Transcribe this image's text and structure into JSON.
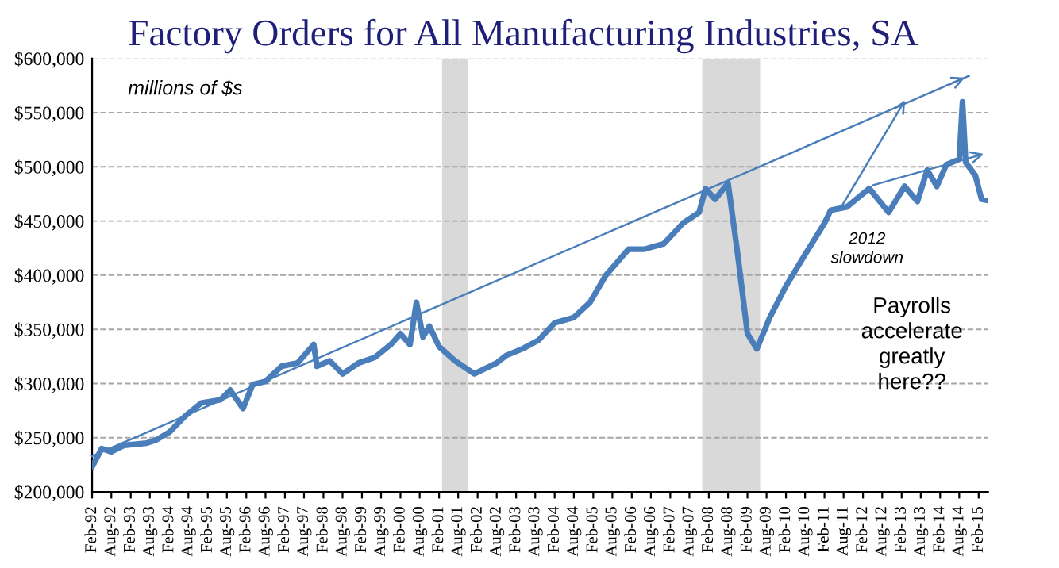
{
  "chart_data": {
    "type": "line",
    "title": "Factory Orders for All Manufacturing Industries, SA",
    "annotations": [
      "millions of $s",
      "2012 slowdown",
      "Payrolls accelerate greatly here??"
    ],
    "series": [
      {
        "color": "#4a7ebb",
        "x": [
          "1992-02",
          "1992-05",
          "1992-08",
          "1992-12",
          "1993-07",
          "1993-10",
          "1994-02",
          "1994-07",
          "1994-12",
          "1995-06",
          "1995-09",
          "1996-01",
          "1996-04",
          "1996-08",
          "1997-01",
          "1997-06",
          "1997-11",
          "1997-12",
          "1998-04",
          "1998-08",
          "1999-01",
          "1999-06",
          "1999-11",
          "2000-02",
          "2000-05",
          "2000-07",
          "2000-09",
          "2000-11",
          "2001-02",
          "2001-07",
          "2002-01",
          "2002-08",
          "2002-11",
          "2003-04",
          "2003-09",
          "2004-02",
          "2004-08",
          "2005-01",
          "2005-06",
          "2006-01",
          "2006-06",
          "2006-12",
          "2007-06",
          "2007-11",
          "2008-01",
          "2008-04",
          "2008-08",
          "2008-11",
          "2009-02",
          "2009-05",
          "2009-09",
          "2010-02",
          "2010-08",
          "2011-02",
          "2011-04",
          "2011-09",
          "2012-04",
          "2012-10",
          "2013-03",
          "2013-07",
          "2013-10",
          "2014-01",
          "2014-04",
          "2014-08",
          "2014-09",
          "2014-10",
          "2015-01",
          "2015-03",
          "2015-05"
        ],
        "values": [
          223000,
          240000,
          237000,
          243000,
          245000,
          248000,
          255000,
          270000,
          282000,
          285000,
          294000,
          277000,
          299000,
          302000,
          316000,
          319000,
          336000,
          316000,
          321000,
          309000,
          319000,
          324000,
          336000,
          346000,
          336000,
          375000,
          343000,
          353000,
          334000,
          321000,
          309000,
          319000,
          326000,
          332000,
          340000,
          356000,
          361000,
          375000,
          400000,
          424000,
          424000,
          429000,
          448000,
          458000,
          480000,
          470000,
          485000,
          419000,
          346000,
          332000,
          361000,
          390000,
          419000,
          448000,
          460000,
          463000,
          480000,
          458000,
          482000,
          468000,
          497000,
          482000,
          502000,
          507000,
          560000,
          504000,
          492000,
          470000,
          469000
        ]
      },
      {
        "type": "line",
        "color": "#4a7ebb",
        "x": [
          "1992-02",
          "2014-11"
        ],
        "values": [
          233000,
          584000
        ]
      }
    ],
    "xlim": [
      "1992-02",
      "2015-05"
    ],
    "xticks": [
      {
        "value": "1992-02",
        "label": "Feb-92"
      },
      {
        "value": "1992-08",
        "label": "Aug-92"
      },
      {
        "value": "1993-02",
        "label": "Feb-93"
      },
      {
        "value": "1993-08",
        "label": "Aug-93"
      },
      {
        "value": "1994-02",
        "label": "Feb-94"
      },
      {
        "value": "1994-08",
        "label": "Aug-94"
      },
      {
        "value": "1995-02",
        "label": "Feb-95"
      },
      {
        "value": "1995-08",
        "label": "Aug-95"
      },
      {
        "value": "1996-02",
        "label": "Feb-96"
      },
      {
        "value": "1996-08",
        "label": "Aug-96"
      },
      {
        "value": "1997-02",
        "label": "Feb-97"
      },
      {
        "value": "1997-08",
        "label": "Aug-97"
      },
      {
        "value": "1998-02",
        "label": "Feb-98"
      },
      {
        "value": "1998-08",
        "label": "Aug-98"
      },
      {
        "value": "1999-02",
        "label": "Feb-99"
      },
      {
        "value": "1999-08",
        "label": "Aug-99"
      },
      {
        "value": "2000-02",
        "label": "Feb-00"
      },
      {
        "value": "2000-08",
        "label": "Aug-00"
      },
      {
        "value": "2001-02",
        "label": "Feb-01"
      },
      {
        "value": "2001-08",
        "label": "Aug-01"
      },
      {
        "value": "2002-02",
        "label": "Feb-02"
      },
      {
        "value": "2002-08",
        "label": "Aug-02"
      },
      {
        "value": "2003-02",
        "label": "Feb-03"
      },
      {
        "value": "2003-08",
        "label": "Aug-03"
      },
      {
        "value": "2004-02",
        "label": "Feb-04"
      },
      {
        "value": "2004-08",
        "label": "Aug-04"
      },
      {
        "value": "2005-02",
        "label": "Feb-05"
      },
      {
        "value": "2005-08",
        "label": "Aug-05"
      },
      {
        "value": "2006-02",
        "label": "Feb-06"
      },
      {
        "value": "2006-08",
        "label": "Aug-06"
      },
      {
        "value": "2007-02",
        "label": "Feb-07"
      },
      {
        "value": "2007-08",
        "label": "Aug-07"
      },
      {
        "value": "2008-02",
        "label": "Feb-08"
      },
      {
        "value": "2008-08",
        "label": "Aug-08"
      },
      {
        "value": "2009-02",
        "label": "Feb-09"
      },
      {
        "value": "2009-08",
        "label": "Aug-09"
      },
      {
        "value": "2010-02",
        "label": "Feb-10"
      },
      {
        "value": "2010-08",
        "label": "Aug-10"
      },
      {
        "value": "2011-02",
        "label": "Feb-11"
      },
      {
        "value": "2011-08",
        "label": "Aug-11"
      },
      {
        "value": "2012-02",
        "label": "Feb-12"
      },
      {
        "value": "2012-08",
        "label": "Aug-12"
      },
      {
        "value": "2013-02",
        "label": "Feb-13"
      },
      {
        "value": "2013-08",
        "label": "Aug-13"
      },
      {
        "value": "2014-02",
        "label": "Feb-14"
      },
      {
        "value": "2014-08",
        "label": "Aug-14"
      },
      {
        "value": "2015-02",
        "label": "Feb-15"
      }
    ],
    "ylim": [
      200000,
      600000
    ],
    "yticks": [
      {
        "value": 200000,
        "label": "$200,000"
      },
      {
        "value": 250000,
        "label": "$250,000"
      },
      {
        "value": 300000,
        "label": "$300,000"
      },
      {
        "value": 350000,
        "label": "$350,000"
      },
      {
        "value": 400000,
        "label": "$400,000"
      },
      {
        "value": 450000,
        "label": "$450,000"
      },
      {
        "value": 500000,
        "label": "$500,000"
      },
      {
        "value": 550000,
        "label": "$550,000"
      },
      {
        "value": 600000,
        "label": "$600,000"
      }
    ],
    "bands": [
      {
        "axis": "x",
        "from": "2001-03",
        "to": "2001-11",
        "color": "#d9d9d9"
      },
      {
        "axis": "x",
        "from": "2007-12",
        "to": "2009-06",
        "color": "#d9d9d9"
      }
    ],
    "grid": "y"
  }
}
